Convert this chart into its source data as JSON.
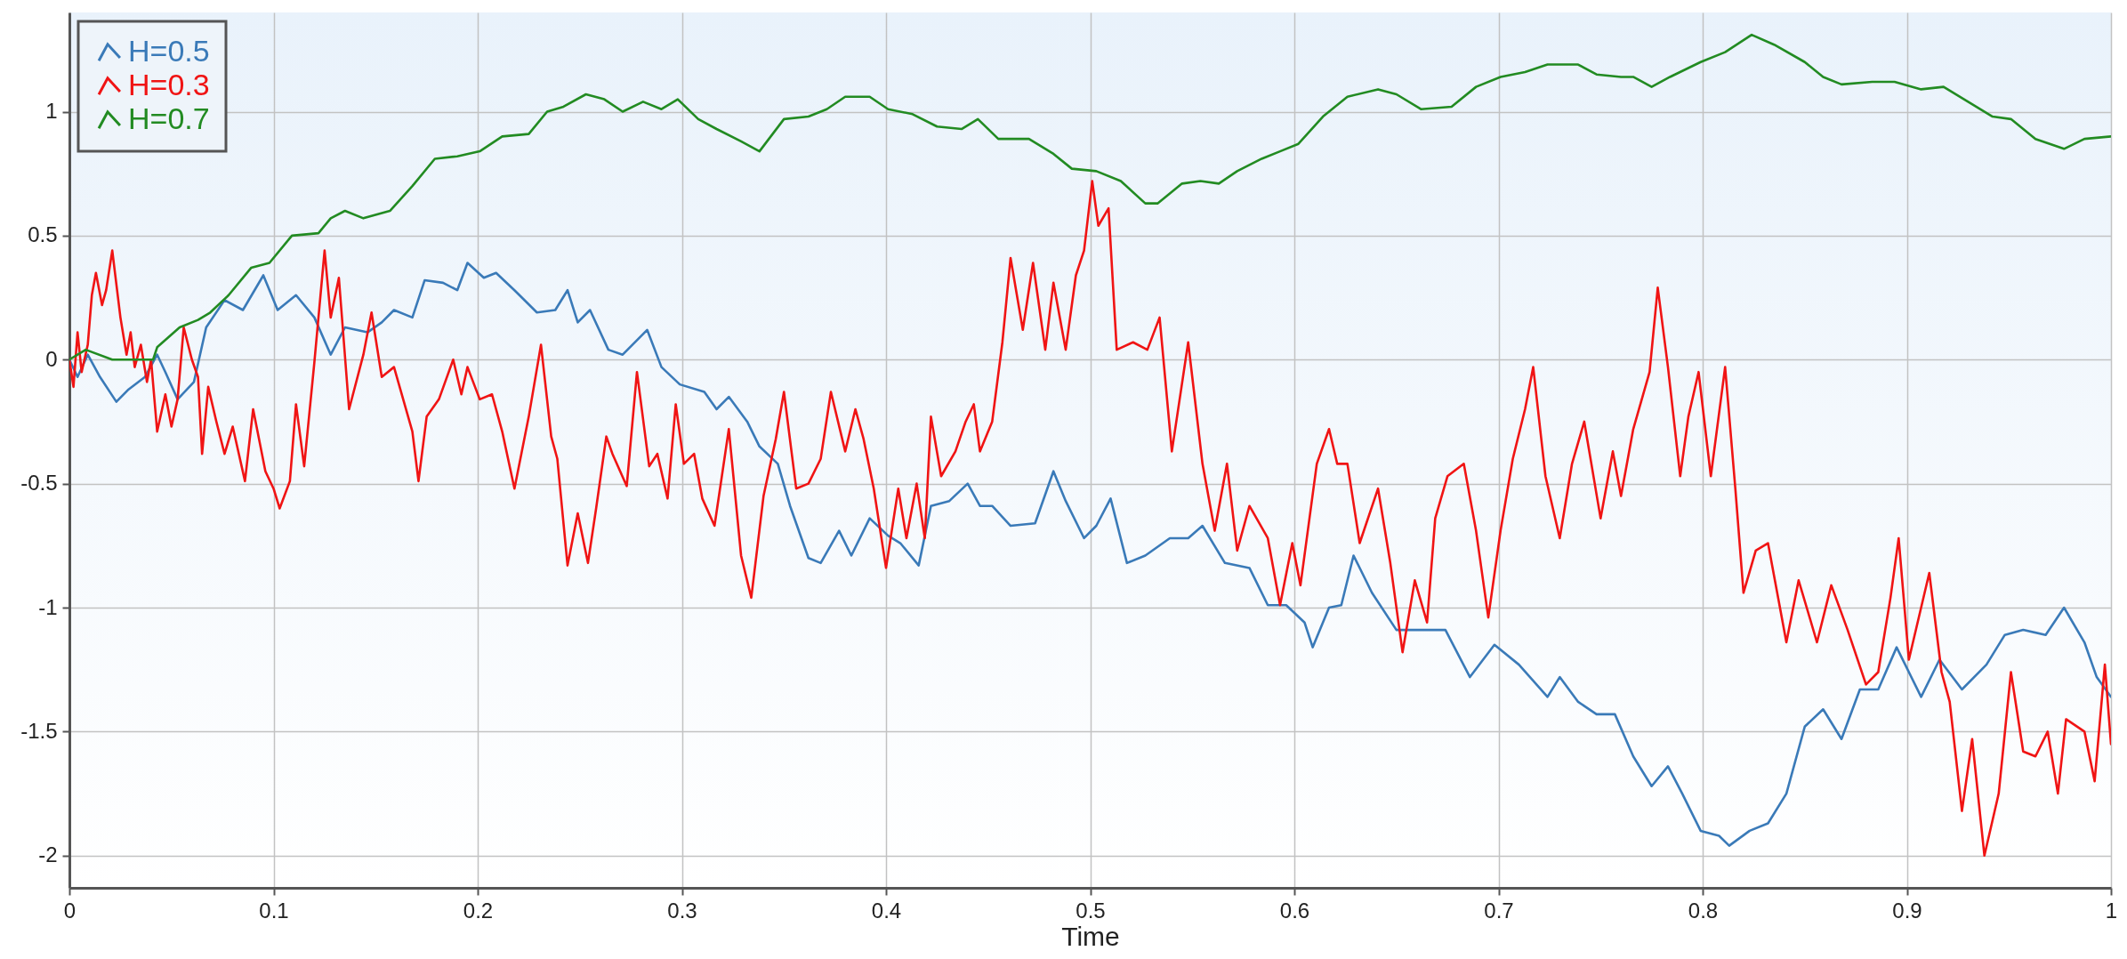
{
  "chart_data": {
    "type": "line",
    "xlabel": "Time",
    "xlim": [
      0,
      1
    ],
    "xticks": [
      0,
      0.1,
      0.2,
      0.3,
      0.4,
      0.5,
      0.6,
      0.7,
      0.8,
      0.9,
      1
    ],
    "ylim": [
      -2.13,
      1.4
    ],
    "yticks": [
      -2,
      -1.5,
      -1,
      -0.5,
      0,
      0.5,
      1
    ],
    "grid": true,
    "legend": "top left",
    "series": [
      {
        "name": "H=0.5",
        "color": "#3a7ab8",
        "x": [
          0,
          0.004,
          0.009,
          0.015,
          0.023,
          0.029,
          0.037,
          0.043,
          0.047,
          0.053,
          0.061,
          0.067,
          0.076,
          0.085,
          0.095,
          0.102,
          0.111,
          0.12,
          0.128,
          0.135,
          0.146,
          0.153,
          0.159,
          0.168,
          0.174,
          0.183,
          0.19,
          0.195,
          0.203,
          0.209,
          0.218,
          0.229,
          0.238,
          0.244,
          0.249,
          0.255,
          0.264,
          0.271,
          0.283,
          0.29,
          0.299,
          0.311,
          0.317,
          0.323,
          0.332,
          0.338,
          0.347,
          0.353,
          0.362,
          0.368,
          0.377,
          0.383,
          0.392,
          0.401,
          0.407,
          0.416,
          0.422,
          0.431,
          0.44,
          0.446,
          0.452,
          0.461,
          0.473,
          0.482,
          0.488,
          0.497,
          0.503,
          0.51,
          0.518,
          0.527,
          0.539,
          0.548,
          0.555,
          0.566,
          0.578,
          0.587,
          0.596,
          0.605,
          0.609,
          0.617,
          0.623,
          0.629,
          0.638,
          0.65,
          0.665,
          0.674,
          0.686,
          0.698,
          0.71,
          0.724,
          0.73,
          0.739,
          0.748,
          0.757,
          0.766,
          0.775,
          0.783,
          0.79,
          0.799,
          0.808,
          0.813,
          0.823,
          0.832,
          0.841,
          0.85,
          0.859,
          0.868,
          0.877,
          0.886,
          0.895,
          0.907,
          0.916,
          0.927,
          0.939,
          0.948,
          0.957,
          0.968,
          0.977,
          0.987,
          0.993,
          1.0
        ],
        "values": [
          0,
          -0.07,
          0.02,
          -0.07,
          -0.17,
          -0.12,
          -0.07,
          0.02,
          -0.05,
          -0.16,
          -0.09,
          0.13,
          0.24,
          0.2,
          0.34,
          0.2,
          0.26,
          0.17,
          0.02,
          0.13,
          0.11,
          0.15,
          0.2,
          0.17,
          0.32,
          0.31,
          0.28,
          0.39,
          0.33,
          0.35,
          0.28,
          0.19,
          0.2,
          0.28,
          0.15,
          0.2,
          0.04,
          0.02,
          0.12,
          -0.03,
          -0.1,
          -0.13,
          -0.2,
          -0.15,
          -0.25,
          -0.35,
          -0.42,
          -0.59,
          -0.8,
          -0.82,
          -0.69,
          -0.79,
          -0.64,
          -0.71,
          -0.74,
          -0.83,
          -0.59,
          -0.57,
          -0.5,
          -0.59,
          -0.59,
          -0.67,
          -0.66,
          -0.45,
          -0.57,
          -0.72,
          -0.67,
          -0.56,
          -0.82,
          -0.79,
          -0.72,
          -0.72,
          -0.67,
          -0.82,
          -0.84,
          -0.99,
          -0.99,
          -1.06,
          -1.16,
          -1.0,
          -0.99,
          -0.79,
          -0.94,
          -1.09,
          -1.09,
          -1.09,
          -1.28,
          -1.15,
          -1.23,
          -1.36,
          -1.28,
          -1.38,
          -1.43,
          -1.43,
          -1.6,
          -1.72,
          -1.64,
          -1.75,
          -1.9,
          -1.92,
          -1.96,
          -1.9,
          -1.87,
          -1.75,
          -1.48,
          -1.41,
          -1.53,
          -1.33,
          -1.33,
          -1.16,
          -1.36,
          -1.21,
          -1.33,
          -1.23,
          -1.11,
          -1.09,
          -1.11,
          -1.0,
          -1.14,
          -1.28,
          -1.36
        ]
      },
      {
        "name": "H=0.3",
        "color": "#f01414",
        "x": [
          0,
          0.002,
          0.004,
          0.006,
          0.009,
          0.011,
          0.013,
          0.016,
          0.018,
          0.021,
          0.025,
          0.028,
          0.03,
          0.032,
          0.035,
          0.038,
          0.04,
          0.043,
          0.047,
          0.05,
          0.053,
          0.056,
          0.06,
          0.063,
          0.065,
          0.068,
          0.072,
          0.076,
          0.08,
          0.086,
          0.09,
          0.096,
          0.1,
          0.103,
          0.108,
          0.111,
          0.115,
          0.12,
          0.125,
          0.128,
          0.132,
          0.137,
          0.144,
          0.148,
          0.153,
          0.159,
          0.168,
          0.171,
          0.175,
          0.181,
          0.188,
          0.192,
          0.195,
          0.201,
          0.207,
          0.212,
          0.218,
          0.225,
          0.231,
          0.236,
          0.239,
          0.244,
          0.249,
          0.254,
          0.258,
          0.263,
          0.266,
          0.273,
          0.278,
          0.284,
          0.288,
          0.293,
          0.297,
          0.301,
          0.306,
          0.31,
          0.316,
          0.323,
          0.329,
          0.334,
          0.34,
          0.346,
          0.35,
          0.356,
          0.362,
          0.368,
          0.373,
          0.38,
          0.385,
          0.389,
          0.394,
          0.4,
          0.406,
          0.41,
          0.415,
          0.419,
          0.422,
          0.427,
          0.434,
          0.439,
          0.443,
          0.446,
          0.452,
          0.457,
          0.461,
          0.467,
          0.472,
          0.478,
          0.482,
          0.488,
          0.493,
          0.497,
          0.501,
          0.504,
          0.509,
          0.513,
          0.521,
          0.528,
          0.534,
          0.54,
          0.548,
          0.555,
          0.561,
          0.567,
          0.572,
          0.578,
          0.587,
          0.593,
          0.599,
          0.603,
          0.611,
          0.617,
          0.621,
          0.626,
          0.632,
          0.641,
          0.647,
          0.653,
          0.659,
          0.665,
          0.669,
          0.675,
          0.683,
          0.689,
          0.695,
          0.701,
          0.707,
          0.713,
          0.717,
          0.723,
          0.73,
          0.736,
          0.742,
          0.75,
          0.756,
          0.76,
          0.766,
          0.774,
          0.778,
          0.783,
          0.789,
          0.793,
          0.798,
          0.804,
          0.811,
          0.816,
          0.82,
          0.826,
          0.832,
          0.841,
          0.847,
          0.856,
          0.863,
          0.871,
          0.88,
          0.886,
          0.892,
          0.896,
          0.901,
          0.911,
          0.917,
          0.921,
          0.927,
          0.932,
          0.938,
          0.945,
          0.951,
          0.957,
          0.963,
          0.969,
          0.974,
          0.978,
          0.987,
          0.992,
          0.997,
          1.0
        ],
        "values": [
          0,
          -0.11,
          0.11,
          -0.05,
          0.06,
          0.26,
          0.35,
          0.22,
          0.28,
          0.44,
          0.17,
          0.02,
          0.11,
          -0.03,
          0.06,
          -0.09,
          0.0,
          -0.29,
          -0.14,
          -0.27,
          -0.16,
          0.13,
          0.0,
          -0.07,
          -0.38,
          -0.11,
          -0.25,
          -0.38,
          -0.27,
          -0.49,
          -0.2,
          -0.45,
          -0.52,
          -0.6,
          -0.49,
          -0.18,
          -0.43,
          -0.01,
          0.44,
          0.17,
          0.33,
          -0.2,
          0.02,
          0.19,
          -0.07,
          -0.03,
          -0.29,
          -0.49,
          -0.23,
          -0.16,
          0.0,
          -0.14,
          -0.03,
          -0.16,
          -0.14,
          -0.29,
          -0.52,
          -0.23,
          0.06,
          -0.31,
          -0.4,
          -0.83,
          -0.62,
          -0.82,
          -0.6,
          -0.31,
          -0.38,
          -0.51,
          -0.05,
          -0.43,
          -0.38,
          -0.56,
          -0.18,
          -0.42,
          -0.38,
          -0.56,
          -0.67,
          -0.28,
          -0.79,
          -0.96,
          -0.55,
          -0.32,
          -0.13,
          -0.52,
          -0.5,
          -0.4,
          -0.13,
          -0.37,
          -0.2,
          -0.32,
          -0.52,
          -0.84,
          -0.52,
          -0.72,
          -0.5,
          -0.72,
          -0.23,
          -0.47,
          -0.37,
          -0.25,
          -0.18,
          -0.37,
          -0.25,
          0.07,
          0.41,
          0.12,
          0.39,
          0.04,
          0.31,
          0.04,
          0.34,
          0.44,
          0.72,
          0.54,
          0.61,
          0.04,
          0.07,
          0.04,
          0.17,
          -0.37,
          0.07,
          -0.42,
          -0.69,
          -0.42,
          -0.77,
          -0.59,
          -0.72,
          -0.99,
          -0.74,
          -0.91,
          -0.42,
          -0.28,
          -0.42,
          -0.42,
          -0.74,
          -0.52,
          -0.82,
          -1.18,
          -0.89,
          -1.06,
          -0.64,
          -0.47,
          -0.42,
          -0.69,
          -1.04,
          -0.69,
          -0.4,
          -0.2,
          -0.03,
          -0.47,
          -0.72,
          -0.42,
          -0.25,
          -0.64,
          -0.37,
          -0.55,
          -0.28,
          -0.05,
          0.29,
          -0.03,
          -0.47,
          -0.23,
          -0.05,
          -0.47,
          -0.03,
          -0.52,
          -0.94,
          -0.77,
          -0.74,
          -1.14,
          -0.89,
          -1.14,
          -0.91,
          -1.09,
          -1.31,
          -1.26,
          -0.96,
          -0.72,
          -1.21,
          -0.86,
          -1.26,
          -1.38,
          -1.82,
          -1.53,
          -2.0,
          -1.75,
          -1.26,
          -1.58,
          -1.6,
          -1.5,
          -1.75,
          -1.45,
          -1.5,
          -1.7,
          -1.23,
          -1.55
        ]
      },
      {
        "name": "H=0.7",
        "color": "#228b22",
        "x": [
          0,
          0.008,
          0.021,
          0.032,
          0.041,
          0.043,
          0.054,
          0.063,
          0.069,
          0.078,
          0.089,
          0.098,
          0.109,
          0.122,
          0.128,
          0.135,
          0.144,
          0.157,
          0.168,
          0.179,
          0.19,
          0.201,
          0.212,
          0.225,
          0.234,
          0.242,
          0.253,
          0.262,
          0.271,
          0.281,
          0.29,
          0.298,
          0.308,
          0.317,
          0.329,
          0.338,
          0.35,
          0.362,
          0.371,
          0.38,
          0.392,
          0.401,
          0.413,
          0.425,
          0.437,
          0.445,
          0.455,
          0.47,
          0.482,
          0.491,
          0.503,
          0.515,
          0.527,
          0.533,
          0.545,
          0.554,
          0.563,
          0.572,
          0.584,
          0.593,
          0.602,
          0.614,
          0.626,
          0.641,
          0.65,
          0.662,
          0.677,
          0.689,
          0.701,
          0.713,
          0.724,
          0.739,
          0.748,
          0.76,
          0.766,
          0.775,
          0.784,
          0.799,
          0.811,
          0.824,
          0.835,
          0.85,
          0.859,
          0.868,
          0.883,
          0.894,
          0.907,
          0.918,
          0.93,
          0.942,
          0.951,
          0.963,
          0.977,
          0.987,
          1.0
        ],
        "values": [
          0.0,
          0.04,
          0.0,
          0.0,
          0.0,
          0.05,
          0.13,
          0.16,
          0.19,
          0.26,
          0.37,
          0.39,
          0.5,
          0.51,
          0.57,
          0.6,
          0.57,
          0.6,
          0.7,
          0.81,
          0.82,
          0.84,
          0.9,
          0.91,
          1.0,
          1.02,
          1.07,
          1.05,
          1.0,
          1.04,
          1.01,
          1.05,
          0.97,
          0.93,
          0.88,
          0.84,
          0.97,
          0.98,
          1.01,
          1.06,
          1.06,
          1.01,
          0.99,
          0.94,
          0.93,
          0.97,
          0.89,
          0.89,
          0.83,
          0.77,
          0.76,
          0.72,
          0.63,
          0.63,
          0.71,
          0.72,
          0.71,
          0.76,
          0.81,
          0.84,
          0.87,
          0.98,
          1.06,
          1.09,
          1.07,
          1.01,
          1.02,
          1.1,
          1.14,
          1.16,
          1.19,
          1.19,
          1.15,
          1.14,
          1.14,
          1.1,
          1.14,
          1.2,
          1.24,
          1.31,
          1.27,
          1.2,
          1.14,
          1.11,
          1.12,
          1.12,
          1.09,
          1.1,
          1.04,
          0.98,
          0.97,
          0.89,
          0.85,
          0.89,
          0.9
        ]
      }
    ]
  }
}
